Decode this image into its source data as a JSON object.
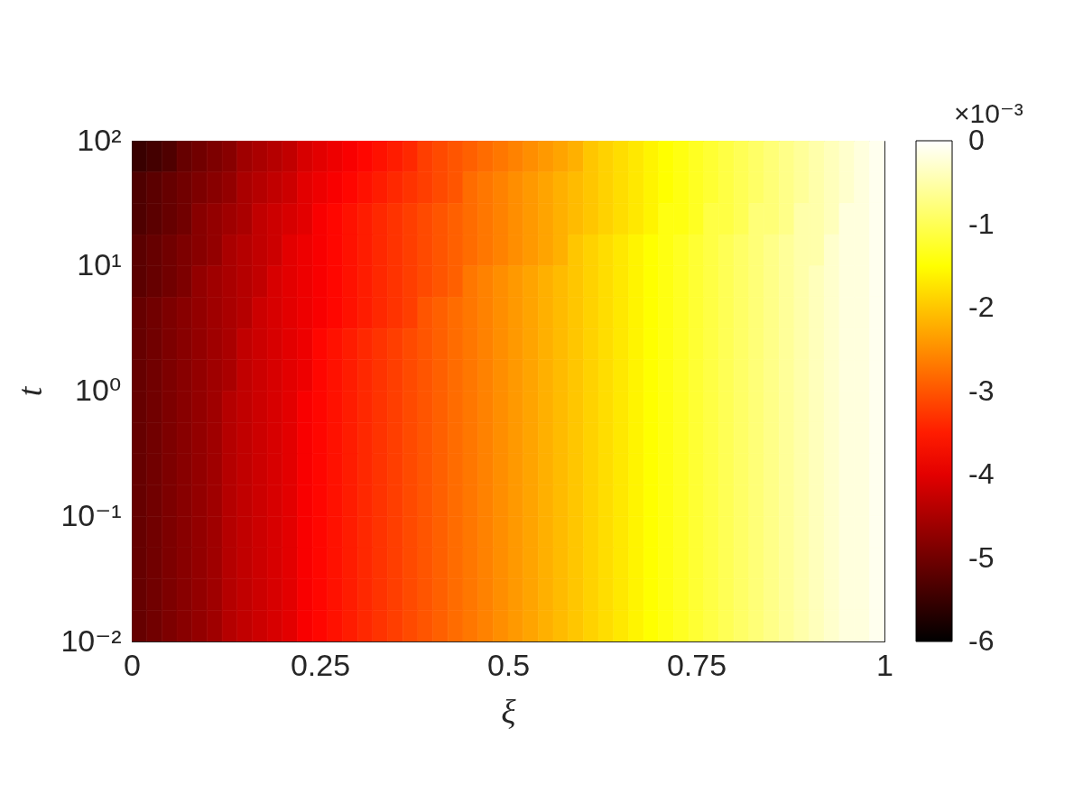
{
  "chart_data": {
    "type": "heatmap",
    "xlabel": "ξ",
    "ylabel": "t",
    "clabel": "×10⁻³",
    "x": [
      0.01,
      0.03,
      0.05,
      0.07,
      0.09,
      0.11,
      0.13,
      0.15,
      0.17,
      0.19,
      0.21,
      0.23,
      0.25,
      0.27,
      0.29,
      0.31,
      0.33,
      0.35,
      0.37,
      0.39,
      0.41,
      0.43,
      0.45,
      0.47,
      0.49,
      0.51,
      0.53,
      0.55,
      0.57,
      0.59,
      0.61,
      0.63,
      0.65,
      0.67,
      0.69,
      0.71,
      0.73,
      0.75,
      0.77,
      0.79,
      0.81,
      0.83,
      0.85,
      0.87,
      0.89,
      0.91,
      0.93,
      0.95,
      0.97,
      0.99
    ],
    "cells": [
      [
        -5.5,
        -5.4,
        -5.3,
        -5.1,
        -5.0,
        -4.9,
        -4.8,
        -4.6,
        -4.5,
        -4.4,
        -4.3,
        -4.1,
        -4.0,
        -3.9,
        -3.8,
        -3.7,
        -3.6,
        -3.5,
        -3.4,
        -3.2,
        -3.1,
        -3.0,
        -2.9,
        -2.8,
        -2.7,
        -2.6,
        -2.5,
        -2.4,
        -2.3,
        -2.2,
        -2.0,
        -1.9,
        -1.8,
        -1.7,
        -1.6,
        -1.5,
        -1.4,
        -1.3,
        -1.2,
        -1.1,
        -1.0,
        -0.9,
        -0.8,
        -0.7,
        -0.6,
        -0.5,
        -0.4,
        -0.3,
        -0.2,
        -0.1
      ],
      [
        -5.3,
        -5.2,
        -5.1,
        -5.0,
        -4.9,
        -4.8,
        -4.7,
        -4.5,
        -4.4,
        -4.3,
        -4.2,
        -4.0,
        -3.9,
        -3.8,
        -3.7,
        -3.6,
        -3.5,
        -3.4,
        -3.3,
        -3.2,
        -3.1,
        -3.0,
        -2.8,
        -2.7,
        -2.6,
        -2.5,
        -2.4,
        -2.3,
        -2.2,
        -2.1,
        -2.0,
        -1.9,
        -1.8,
        -1.7,
        -1.6,
        -1.5,
        -1.4,
        -1.3,
        -1.2,
        -1.1,
        -1.0,
        -0.9,
        -0.8,
        -0.7,
        -0.6,
        -0.5,
        -0.4,
        -0.3,
        -0.2,
        -0.1
      ],
      [
        -5.3,
        -5.2,
        -5.1,
        -5.0,
        -4.8,
        -4.7,
        -4.6,
        -4.5,
        -4.3,
        -4.2,
        -4.1,
        -4.0,
        -3.8,
        -3.7,
        -3.6,
        -3.5,
        -3.4,
        -3.3,
        -3.2,
        -3.1,
        -3.0,
        -2.9,
        -2.8,
        -2.7,
        -2.6,
        -2.5,
        -2.4,
        -2.3,
        -2.2,
        -2.1,
        -2.0,
        -1.9,
        -1.8,
        -1.7,
        -1.6,
        -1.4,
        -1.4,
        -1.3,
        -1.1,
        -1.1,
        -1.0,
        -0.8,
        -0.8,
        -0.7,
        -0.5,
        -0.5,
        -0.4,
        -0.2,
        -0.2,
        -0.1
      ],
      [
        -5.2,
        -5.1,
        -5.0,
        -4.9,
        -4.8,
        -4.7,
        -4.5,
        -4.4,
        -4.3,
        -4.2,
        -4.0,
        -3.9,
        -3.8,
        -3.7,
        -3.6,
        -3.5,
        -3.4,
        -3.3,
        -3.2,
        -3.1,
        -3.0,
        -2.9,
        -2.8,
        -2.7,
        -2.6,
        -2.5,
        -2.4,
        -2.3,
        -2.2,
        -2.0,
        -1.9,
        -1.8,
        -1.7,
        -1.6,
        -1.5,
        -1.4,
        -1.3,
        -1.2,
        -1.1,
        -1.0,
        -0.9,
        -0.8,
        -0.7,
        -0.6,
        -0.5,
        -0.5,
        -0.3,
        -0.2,
        -0.2,
        -0.1
      ],
      [
        -5.2,
        -5.1,
        -5.0,
        -4.9,
        -4.7,
        -4.6,
        -4.5,
        -4.4,
        -4.3,
        -4.1,
        -4.0,
        -3.9,
        -3.8,
        -3.7,
        -3.6,
        -3.5,
        -3.4,
        -3.3,
        -3.2,
        -3.1,
        -3.0,
        -2.9,
        -2.7,
        -2.6,
        -2.5,
        -2.4,
        -2.3,
        -2.2,
        -2.1,
        -2.0,
        -1.9,
        -1.8,
        -1.7,
        -1.6,
        -1.5,
        -1.4,
        -1.3,
        -1.2,
        -1.1,
        -1.0,
        -0.9,
        -0.8,
        -0.7,
        -0.6,
        -0.5,
        -0.4,
        -0.3,
        -0.2,
        -0.2,
        -0.1
      ],
      [
        -5.1,
        -5.0,
        -4.9,
        -4.8,
        -4.7,
        -4.6,
        -4.5,
        -4.4,
        -4.2,
        -4.1,
        -4.0,
        -3.9,
        -3.8,
        -3.7,
        -3.6,
        -3.5,
        -3.4,
        -3.3,
        -3.2,
        -3.0,
        -2.9,
        -2.8,
        -2.7,
        -2.6,
        -2.5,
        -2.4,
        -2.3,
        -2.2,
        -2.1,
        -2.0,
        -1.9,
        -1.8,
        -1.7,
        -1.6,
        -1.5,
        -1.4,
        -1.3,
        -1.2,
        -1.1,
        -1.0,
        -0.9,
        -0.8,
        -0.7,
        -0.6,
        -0.5,
        -0.4,
        -0.3,
        -0.2,
        -0.2,
        -0.1
      ],
      [
        -5.1,
        -5.0,
        -4.9,
        -4.8,
        -4.7,
        -4.6,
        -4.5,
        -4.3,
        -4.2,
        -4.1,
        -4.0,
        -3.9,
        -3.7,
        -3.6,
        -3.5,
        -3.4,
        -3.3,
        -3.2,
        -3.1,
        -3.0,
        -2.9,
        -2.8,
        -2.7,
        -2.6,
        -2.5,
        -2.4,
        -2.3,
        -2.2,
        -2.1,
        -2.0,
        -1.9,
        -1.8,
        -1.7,
        -1.6,
        -1.5,
        -1.4,
        -1.3,
        -1.2,
        -1.1,
        -1.0,
        -0.9,
        -0.8,
        -0.7,
        -0.6,
        -0.5,
        -0.4,
        -0.3,
        -0.2,
        -0.2,
        -0.1
      ],
      [
        -5.1,
        -5.0,
        -4.9,
        -4.8,
        -4.7,
        -4.6,
        -4.5,
        -4.3,
        -4.2,
        -4.1,
        -4.0,
        -3.9,
        -3.7,
        -3.6,
        -3.5,
        -3.4,
        -3.3,
        -3.2,
        -3.1,
        -3.0,
        -2.9,
        -2.8,
        -2.7,
        -2.6,
        -2.5,
        -2.4,
        -2.3,
        -2.2,
        -2.1,
        -2.0,
        -1.9,
        -1.8,
        -1.7,
        -1.6,
        -1.5,
        -1.4,
        -1.3,
        -1.2,
        -1.1,
        -1.0,
        -0.9,
        -0.8,
        -0.7,
        -0.6,
        -0.5,
        -0.4,
        -0.3,
        -0.2,
        -0.2,
        -0.1
      ],
      [
        -5.1,
        -5.0,
        -4.9,
        -4.8,
        -4.7,
        -4.6,
        -4.4,
        -4.3,
        -4.2,
        -4.1,
        -4.0,
        -3.8,
        -3.7,
        -3.6,
        -3.5,
        -3.4,
        -3.3,
        -3.2,
        -3.1,
        -3.0,
        -2.9,
        -2.8,
        -2.7,
        -2.6,
        -2.5,
        -2.4,
        -2.3,
        -2.2,
        -2.1,
        -2.0,
        -1.9,
        -1.8,
        -1.7,
        -1.6,
        -1.5,
        -1.4,
        -1.3,
        -1.2,
        -1.1,
        -1.0,
        -0.9,
        -0.8,
        -0.7,
        -0.6,
        -0.5,
        -0.4,
        -0.3,
        -0.2,
        -0.2,
        -0.1
      ],
      [
        -5.1,
        -5.0,
        -4.9,
        -4.8,
        -4.7,
        -4.6,
        -4.4,
        -4.3,
        -4.2,
        -4.1,
        -4.0,
        -3.8,
        -3.7,
        -3.6,
        -3.5,
        -3.4,
        -3.3,
        -3.2,
        -3.1,
        -3.0,
        -2.9,
        -2.8,
        -2.7,
        -2.6,
        -2.5,
        -2.4,
        -2.3,
        -2.2,
        -2.1,
        -2.0,
        -1.9,
        -1.8,
        -1.7,
        -1.6,
        -1.5,
        -1.4,
        -1.3,
        -1.2,
        -1.1,
        -1.0,
        -0.9,
        -0.8,
        -0.7,
        -0.6,
        -0.5,
        -0.4,
        -0.3,
        -0.2,
        -0.2,
        -0.1
      ],
      [
        -5.1,
        -5.0,
        -4.9,
        -4.8,
        -4.7,
        -4.6,
        -4.4,
        -4.3,
        -4.2,
        -4.1,
        -4.0,
        -3.8,
        -3.7,
        -3.6,
        -3.5,
        -3.4,
        -3.3,
        -3.2,
        -3.1,
        -3.0,
        -2.9,
        -2.8,
        -2.7,
        -2.6,
        -2.5,
        -2.4,
        -2.3,
        -2.2,
        -2.1,
        -2.0,
        -1.9,
        -1.8,
        -1.7,
        -1.6,
        -1.5,
        -1.4,
        -1.3,
        -1.2,
        -1.1,
        -1.0,
        -0.9,
        -0.8,
        -0.7,
        -0.6,
        -0.5,
        -0.4,
        -0.3,
        -0.2,
        -0.2,
        -0.1
      ],
      [
        -5.1,
        -5.0,
        -4.9,
        -4.8,
        -4.7,
        -4.6,
        -4.4,
        -4.3,
        -4.2,
        -4.1,
        -4.0,
        -3.8,
        -3.7,
        -3.6,
        -3.5,
        -3.4,
        -3.3,
        -3.2,
        -3.1,
        -3.0,
        -2.9,
        -2.8,
        -2.7,
        -2.6,
        -2.5,
        -2.4,
        -2.3,
        -2.2,
        -2.1,
        -2.0,
        -1.9,
        -1.8,
        -1.7,
        -1.6,
        -1.5,
        -1.4,
        -1.3,
        -1.2,
        -1.1,
        -1.0,
        -0.9,
        -0.8,
        -0.7,
        -0.6,
        -0.5,
        -0.4,
        -0.3,
        -0.2,
        -0.2,
        -0.1
      ],
      [
        -5.1,
        -5.0,
        -4.9,
        -4.8,
        -4.7,
        -4.6,
        -4.4,
        -4.3,
        -4.2,
        -4.1,
        -4.0,
        -3.8,
        -3.7,
        -3.6,
        -3.5,
        -3.4,
        -3.3,
        -3.2,
        -3.1,
        -3.0,
        -2.9,
        -2.8,
        -2.7,
        -2.6,
        -2.5,
        -2.4,
        -2.3,
        -2.2,
        -2.1,
        -2.0,
        -1.9,
        -1.8,
        -1.7,
        -1.6,
        -1.5,
        -1.4,
        -1.3,
        -1.2,
        -1.1,
        -1.0,
        -0.9,
        -0.8,
        -0.7,
        -0.6,
        -0.5,
        -0.4,
        -0.3,
        -0.2,
        -0.2,
        -0.1
      ],
      [
        -5.1,
        -5.0,
        -4.9,
        -4.8,
        -4.7,
        -4.6,
        -4.4,
        -4.3,
        -4.2,
        -4.1,
        -4.0,
        -3.8,
        -3.7,
        -3.6,
        -3.5,
        -3.4,
        -3.3,
        -3.2,
        -3.1,
        -3.0,
        -2.9,
        -2.8,
        -2.7,
        -2.6,
        -2.5,
        -2.4,
        -2.3,
        -2.2,
        -2.1,
        -2.0,
        -1.9,
        -1.8,
        -1.7,
        -1.6,
        -1.5,
        -1.4,
        -1.3,
        -1.2,
        -1.1,
        -1.0,
        -0.9,
        -0.8,
        -0.7,
        -0.6,
        -0.5,
        -0.4,
        -0.3,
        -0.2,
        -0.2,
        -0.1
      ],
      [
        -5.1,
        -5.0,
        -4.9,
        -4.8,
        -4.7,
        -4.6,
        -4.4,
        -4.3,
        -4.2,
        -4.1,
        -4.0,
        -3.8,
        -3.7,
        -3.6,
        -3.5,
        -3.4,
        -3.3,
        -3.2,
        -3.1,
        -3.0,
        -2.9,
        -2.8,
        -2.7,
        -2.6,
        -2.5,
        -2.4,
        -2.3,
        -2.2,
        -2.1,
        -2.0,
        -1.9,
        -1.8,
        -1.7,
        -1.6,
        -1.5,
        -1.4,
        -1.3,
        -1.2,
        -1.1,
        -1.0,
        -0.9,
        -0.8,
        -0.7,
        -0.6,
        -0.5,
        -0.4,
        -0.3,
        -0.2,
        -0.2,
        -0.1
      ],
      [
        -5.1,
        -5.0,
        -4.9,
        -4.8,
        -4.7,
        -4.6,
        -4.4,
        -4.3,
        -4.2,
        -4.1,
        -4.0,
        -3.8,
        -3.7,
        -3.6,
        -3.5,
        -3.4,
        -3.3,
        -3.2,
        -3.1,
        -3.0,
        -2.9,
        -2.8,
        -2.7,
        -2.6,
        -2.5,
        -2.4,
        -2.3,
        -2.2,
        -2.1,
        -2.0,
        -1.9,
        -1.8,
        -1.7,
        -1.6,
        -1.5,
        -1.4,
        -1.3,
        -1.2,
        -1.1,
        -1.0,
        -0.9,
        -0.8,
        -0.7,
        -0.6,
        -0.5,
        -0.4,
        -0.3,
        -0.2,
        -0.2,
        -0.1
      ]
    ],
    "xlim": [
      0,
      1
    ],
    "xticks": [
      0,
      0.25,
      0.5,
      0.75,
      1
    ],
    "ylim": [
      0.01,
      100
    ],
    "yticks": [
      {
        "value": 0.01,
        "label": "10⁻²"
      },
      {
        "value": 0.1,
        "label": "10⁻¹"
      },
      {
        "value": 1,
        "label": "10⁰"
      },
      {
        "value": 10,
        "label": "10¹"
      },
      {
        "value": 100,
        "label": "10²"
      }
    ],
    "log": "y",
    "clim": [
      -6,
      0
    ],
    "cticks": [
      -6,
      -5,
      -4,
      -3,
      -2,
      -1,
      0
    ]
  }
}
